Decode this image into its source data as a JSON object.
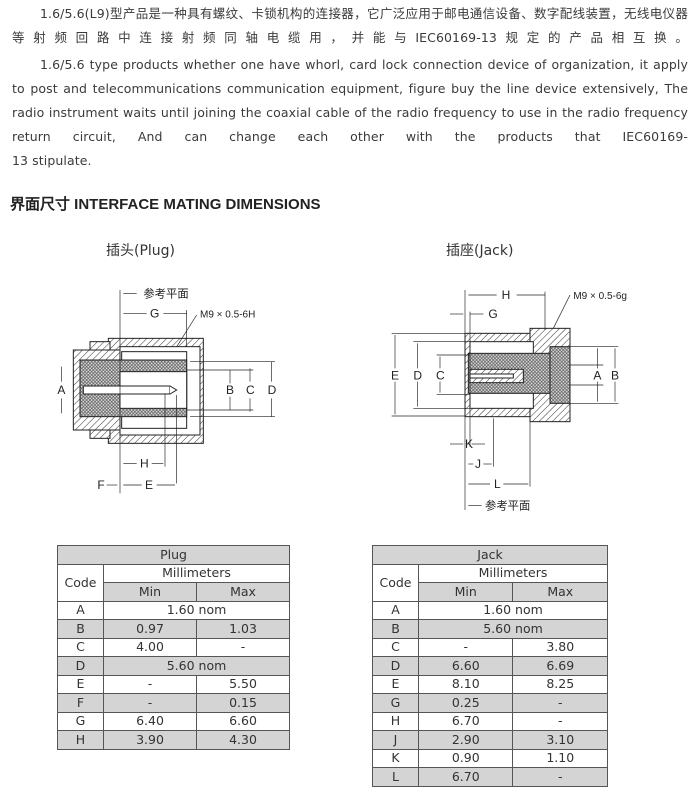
{
  "intro": {
    "zh": "1.6/5.6(L9)型产品是一种具有螺纹、卡锁机构的连接器，它广泛应用于邮电通信设备、数字配线装置，无线电仪器等射频回路中连接射频同轴电缆用，并能与IEC60169-13规定的产品相互换。",
    "en_main": "1.6/5.6 type products whether one have whorl, card lock connection device of organization, it apply to post and telecommunications communication equipment, figure buy the line device extensively, The radio instrument waits until joining the coaxial cable of the radio frequency to use in the radio frequency return circuit, And can change each other with the products that IEC60169-",
    "en_tail": "13 stipulate."
  },
  "section_heading": "界面尺寸  INTERFACE MATING DIMENSIONS",
  "plug_diagram": {
    "title": "插头(Plug)",
    "ref_plane": "参考平面",
    "thread": "M9 × 0.5-6H",
    "labels": {
      "A": "A",
      "B": "B",
      "C": "C",
      "D": "D",
      "E": "E",
      "F": "F",
      "G": "G",
      "H": "H"
    }
  },
  "jack_diagram": {
    "title": "插座(Jack)",
    "ref_plane": "参考平面",
    "thread": "M9 × 0.5-6g",
    "labels": {
      "A": "A",
      "B": "B",
      "C": "C",
      "D": "D",
      "E": "E",
      "G": "G",
      "H": "H",
      "J": "J",
      "K": "K",
      "L": "L"
    }
  },
  "plug_table": {
    "title": "Plug",
    "code_header": "Code",
    "unit_header": "Millimeters",
    "min_header": "Min",
    "max_header": "Max",
    "rows": [
      {
        "code": "A",
        "nominal": "1.60 nom"
      },
      {
        "code": "B",
        "min": "0.97",
        "max": "1.03"
      },
      {
        "code": "C",
        "min": "4.00",
        "max": "-"
      },
      {
        "code": "D",
        "nominal": "5.60 nom"
      },
      {
        "code": "E",
        "min": "-",
        "max": "5.50"
      },
      {
        "code": "F",
        "min": "-",
        "max": "0.15"
      },
      {
        "code": "G",
        "min": "6.40",
        "max": "6.60"
      },
      {
        "code": "H",
        "min": "3.90",
        "max": "4.30"
      }
    ]
  },
  "jack_table": {
    "title": "Jack",
    "code_header": "Code",
    "unit_header": "Millimeters",
    "min_header": "Min",
    "max_header": "Max",
    "rows": [
      {
        "code": "A",
        "nominal": "1.60 nom"
      },
      {
        "code": "B",
        "nominal": "5.60 nom"
      },
      {
        "code": "C",
        "min": "-",
        "max": "3.80"
      },
      {
        "code": "D",
        "min": "6.60",
        "max": "6.69"
      },
      {
        "code": "E",
        "min": "8.10",
        "max": "8.25"
      },
      {
        "code": "G",
        "min": "0.25",
        "max": "-"
      },
      {
        "code": "H",
        "min": "6.70",
        "max": "-"
      },
      {
        "code": "J",
        "min": "2.90",
        "max": "3.10"
      },
      {
        "code": "K",
        "min": "0.90",
        "max": "1.10"
      },
      {
        "code": "L",
        "min": "6.70",
        "max": "-"
      }
    ]
  }
}
